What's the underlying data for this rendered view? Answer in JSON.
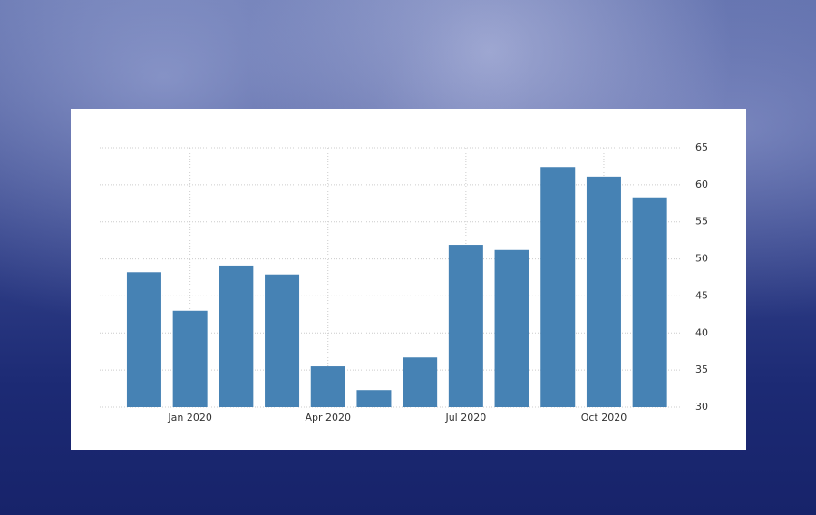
{
  "chart_data": {
    "type": "bar",
    "categories": [
      null,
      "Jan 2020",
      null,
      null,
      "Apr 2020",
      null,
      null,
      "Jul 2020",
      null,
      null,
      "Oct 2020",
      null
    ],
    "values": [
      48.2,
      43.0,
      49.1,
      47.9,
      35.5,
      32.3,
      36.7,
      51.9,
      51.2,
      62.4,
      61.1,
      58.3
    ],
    "color": "#4682b4",
    "ylim": [
      30,
      65
    ],
    "yticks": [
      30,
      35,
      40,
      45,
      50,
      55,
      60,
      65
    ],
    "grid": true
  }
}
